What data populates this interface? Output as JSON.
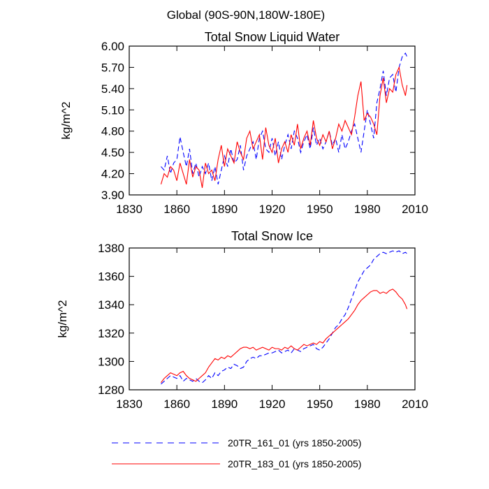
{
  "suptitle": "Global (90S-90N,180W-180E)",
  "colors": {
    "blue": "#0000ff",
    "red": "#ff0000",
    "axis": "#000000"
  },
  "legend": [
    {
      "label": "20TR_161_01 (yrs 1850-2005)",
      "color": "#0000ff",
      "style": "dashed"
    },
    {
      "label": "20TR_183_01 (yrs 1850-2005)",
      "color": "#ff0000",
      "style": "solid"
    }
  ],
  "chart_data": [
    {
      "type": "line",
      "title": "Total Snow Liquid Water",
      "xlabel": "",
      "ylabel": "kg/m^2",
      "xlim": [
        1830,
        2010
      ],
      "ylim": [
        3.9,
        6.0
      ],
      "xticks": [
        1830,
        1860,
        1890,
        1920,
        1950,
        1980,
        2010
      ],
      "yticks": [
        3.9,
        4.2,
        4.5,
        4.8,
        5.1,
        5.4,
        5.7,
        6.0
      ],
      "ytick_labels": [
        "3.90",
        "4.20",
        "4.50",
        "4.80",
        "5.10",
        "5.40",
        "5.70",
        "6.00"
      ],
      "series": [
        {
          "name": "20TR_161_01 (yrs 1850-2005)",
          "color": "#0000ff",
          "style": "dashed",
          "x": [
            1850,
            1852,
            1854,
            1856,
            1858,
            1860,
            1862,
            1864,
            1866,
            1868,
            1870,
            1872,
            1874,
            1876,
            1878,
            1880,
            1882,
            1884,
            1886,
            1888,
            1890,
            1892,
            1894,
            1896,
            1898,
            1900,
            1902,
            1904,
            1906,
            1908,
            1910,
            1912,
            1914,
            1916,
            1918,
            1920,
            1922,
            1924,
            1926,
            1928,
            1930,
            1932,
            1934,
            1936,
            1938,
            1940,
            1942,
            1944,
            1946,
            1948,
            1950,
            1952,
            1954,
            1956,
            1958,
            1960,
            1962,
            1964,
            1966,
            1968,
            1970,
            1972,
            1974,
            1976,
            1978,
            1980,
            1982,
            1984,
            1986,
            1988,
            1990,
            1992,
            1994,
            1996,
            1998,
            2000,
            2002,
            2004,
            2005
          ],
          "y": [
            4.3,
            4.25,
            4.45,
            4.2,
            4.35,
            4.4,
            4.72,
            4.5,
            4.3,
            4.55,
            4.2,
            4.35,
            4.15,
            4.3,
            4.2,
            4.35,
            4.1,
            4.3,
            4.05,
            4.25,
            4.45,
            4.3,
            4.55,
            4.35,
            4.4,
            4.6,
            4.25,
            4.45,
            4.55,
            4.65,
            4.4,
            4.7,
            4.8,
            4.55,
            4.5,
            4.7,
            4.45,
            4.65,
            4.4,
            4.6,
            4.75,
            4.55,
            4.8,
            4.7,
            4.5,
            4.65,
            4.75,
            4.55,
            4.85,
            4.6,
            4.7,
            4.55,
            4.65,
            4.8,
            4.6,
            4.7,
            4.5,
            4.75,
            4.55,
            4.65,
            4.8,
            4.9,
            4.7,
            4.5,
            4.8,
            5.1,
            4.9,
            4.7,
            5.2,
            5.4,
            5.65,
            5.3,
            5.55,
            5.6,
            5.35,
            5.7,
            5.85,
            5.9,
            5.85
          ]
        },
        {
          "name": "20TR_183_01 (yrs 1850-2005)",
          "color": "#ff0000",
          "style": "solid",
          "x": [
            1850,
            1852,
            1854,
            1856,
            1858,
            1860,
            1862,
            1864,
            1866,
            1868,
            1870,
            1872,
            1874,
            1876,
            1878,
            1880,
            1882,
            1884,
            1886,
            1888,
            1890,
            1892,
            1894,
            1896,
            1898,
            1900,
            1902,
            1904,
            1906,
            1908,
            1910,
            1912,
            1914,
            1916,
            1918,
            1920,
            1922,
            1924,
            1926,
            1928,
            1930,
            1932,
            1934,
            1936,
            1938,
            1940,
            1942,
            1944,
            1946,
            1948,
            1950,
            1952,
            1954,
            1956,
            1958,
            1960,
            1962,
            1964,
            1966,
            1968,
            1970,
            1972,
            1974,
            1976,
            1978,
            1980,
            1982,
            1984,
            1986,
            1988,
            1990,
            1992,
            1994,
            1996,
            1998,
            2000,
            2002,
            2004,
            2005
          ],
          "y": [
            4.05,
            4.2,
            4.15,
            4.3,
            4.25,
            4.1,
            4.35,
            4.2,
            4.05,
            4.4,
            4.15,
            4.3,
            4.25,
            4.0,
            4.35,
            4.2,
            4.25,
            4.1,
            4.4,
            4.6,
            4.3,
            4.55,
            4.45,
            4.35,
            4.65,
            4.5,
            4.4,
            4.7,
            4.8,
            4.55,
            4.65,
            4.75,
            4.4,
            4.85,
            4.6,
            4.5,
            4.7,
            4.35,
            4.55,
            4.65,
            4.5,
            4.75,
            4.6,
            4.9,
            4.55,
            4.7,
            4.8,
            4.6,
            4.95,
            4.7,
            4.6,
            4.75,
            4.65,
            4.8,
            4.55,
            4.7,
            4.9,
            4.8,
            4.95,
            4.85,
            4.75,
            5.0,
            5.3,
            5.5,
            4.95,
            5.05,
            5.0,
            4.9,
            4.75,
            5.3,
            5.55,
            5.2,
            5.4,
            5.35,
            5.6,
            5.7,
            5.45,
            5.3,
            5.45
          ]
        }
      ]
    },
    {
      "type": "line",
      "title": "Total Snow Ice",
      "xlabel": "",
      "ylabel": "kg/m^2",
      "xlim": [
        1830,
        2010
      ],
      "ylim": [
        1280,
        1380
      ],
      "xticks": [
        1830,
        1860,
        1890,
        1920,
        1950,
        1980,
        2010
      ],
      "yticks": [
        1280,
        1300,
        1320,
        1340,
        1360,
        1380
      ],
      "ytick_labels": [
        "1280",
        "1300",
        "1320",
        "1340",
        "1360",
        "1380"
      ],
      "series": [
        {
          "name": "20TR_161_01 (yrs 1850-2005)",
          "color": "#0000ff",
          "style": "dashed",
          "x": [
            1850,
            1852,
            1854,
            1856,
            1858,
            1860,
            1862,
            1864,
            1866,
            1868,
            1870,
            1872,
            1874,
            1876,
            1878,
            1880,
            1882,
            1884,
            1886,
            1888,
            1890,
            1892,
            1894,
            1896,
            1898,
            1900,
            1902,
            1904,
            1906,
            1908,
            1910,
            1912,
            1914,
            1916,
            1918,
            1920,
            1922,
            1924,
            1926,
            1928,
            1930,
            1932,
            1934,
            1936,
            1938,
            1940,
            1942,
            1944,
            1946,
            1948,
            1950,
            1952,
            1954,
            1956,
            1958,
            1960,
            1962,
            1964,
            1966,
            1968,
            1970,
            1972,
            1974,
            1976,
            1978,
            1980,
            1982,
            1984,
            1986,
            1988,
            1990,
            1992,
            1994,
            1996,
            1998,
            2000,
            2002,
            2004,
            2005
          ],
          "y": [
            1284,
            1286,
            1288,
            1290,
            1289,
            1288,
            1290,
            1286,
            1288,
            1287,
            1286,
            1288,
            1286,
            1285,
            1287,
            1290,
            1288,
            1292,
            1290,
            1293,
            1294,
            1296,
            1295,
            1298,
            1297,
            1295,
            1296,
            1300,
            1302,
            1303,
            1302,
            1304,
            1304,
            1305,
            1306,
            1306,
            1307,
            1308,
            1306,
            1307,
            1308,
            1306,
            1309,
            1308,
            1307,
            1309,
            1310,
            1311,
            1312,
            1309,
            1308,
            1310,
            1313,
            1316,
            1320,
            1324,
            1326,
            1330,
            1333,
            1338,
            1344,
            1350,
            1356,
            1360,
            1364,
            1366,
            1368,
            1372,
            1374,
            1376,
            1377,
            1376,
            1377,
            1378,
            1377,
            1378,
            1376,
            1377,
            1376
          ]
        },
        {
          "name": "20TR_183_01 (yrs 1850-2005)",
          "color": "#ff0000",
          "style": "solid",
          "x": [
            1850,
            1852,
            1854,
            1856,
            1858,
            1860,
            1862,
            1864,
            1866,
            1868,
            1870,
            1872,
            1874,
            1876,
            1878,
            1880,
            1882,
            1884,
            1886,
            1888,
            1890,
            1892,
            1894,
            1896,
            1898,
            1900,
            1902,
            1904,
            1906,
            1908,
            1910,
            1912,
            1914,
            1916,
            1918,
            1920,
            1922,
            1924,
            1926,
            1928,
            1930,
            1932,
            1934,
            1936,
            1938,
            1940,
            1942,
            1944,
            1946,
            1948,
            1950,
            1952,
            1954,
            1956,
            1958,
            1960,
            1962,
            1964,
            1966,
            1968,
            1970,
            1972,
            1974,
            1976,
            1978,
            1980,
            1982,
            1984,
            1986,
            1988,
            1990,
            1992,
            1994,
            1996,
            1998,
            2000,
            2002,
            2004,
            2005
          ],
          "y": [
            1285,
            1288,
            1290,
            1292,
            1291,
            1290,
            1292,
            1293,
            1290,
            1288,
            1287,
            1286,
            1288,
            1290,
            1292,
            1296,
            1299,
            1302,
            1301,
            1303,
            1302,
            1304,
            1303,
            1305,
            1307,
            1309,
            1310,
            1310,
            1309,
            1310,
            1308,
            1309,
            1310,
            1309,
            1308,
            1310,
            1309,
            1309,
            1308,
            1310,
            1309,
            1311,
            1309,
            1308,
            1310,
            1312,
            1311,
            1312,
            1313,
            1312,
            1314,
            1313,
            1316,
            1318,
            1320,
            1322,
            1324,
            1326,
            1328,
            1330,
            1333,
            1336,
            1340,
            1343,
            1345,
            1347,
            1349,
            1350,
            1350,
            1348,
            1349,
            1348,
            1350,
            1351,
            1349,
            1346,
            1344,
            1340,
            1337
          ]
        }
      ]
    }
  ]
}
